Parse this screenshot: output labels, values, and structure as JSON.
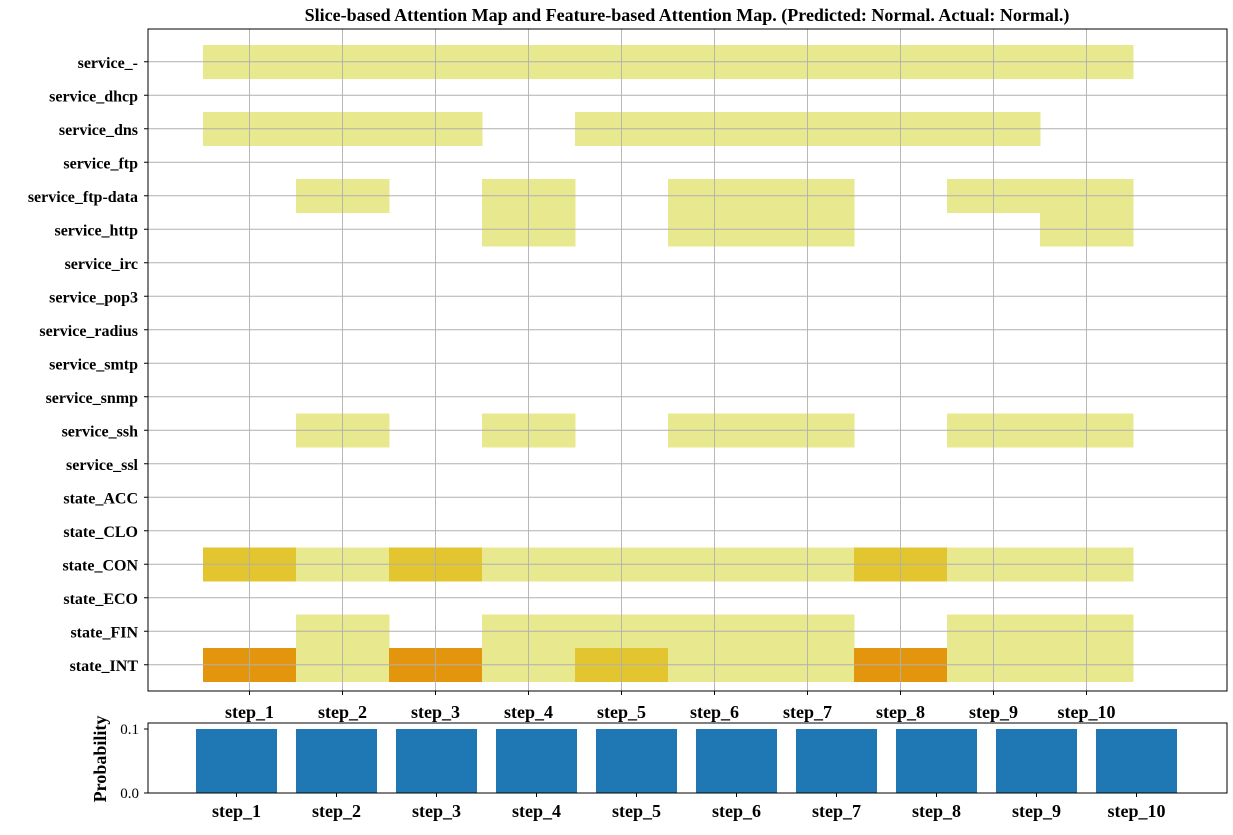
{
  "chart_data": [
    {
      "type": "heatmap",
      "title": "Slice-based Attention Map and Feature-based Attention Map.  (Predicted: Normal.  Actual: Normal.)",
      "x_categories": [
        "step_1",
        "step_2",
        "step_3",
        "step_4",
        "step_5",
        "step_6",
        "step_7",
        "step_8",
        "step_9",
        "step_10"
      ],
      "y_categories": [
        "service_-",
        "service_dhcp",
        "service_dns",
        "service_ftp",
        "service_ftp-data",
        "service_http",
        "service_irc",
        "service_pop3",
        "service_radius",
        "service_smtp",
        "service_snmp",
        "service_ssh",
        "service_ssl",
        "state_ACC",
        "state_CLO",
        "state_CON",
        "state_ECO",
        "state_FIN",
        "state_INT"
      ],
      "levels": [
        0,
        1,
        2,
        3
      ],
      "level_colors": [
        "#ffffff",
        "#e8e88e",
        "#e3c52f",
        "#e3960d"
      ],
      "values": [
        [
          1,
          1,
          1,
          1,
          1,
          1,
          1,
          1,
          1,
          1
        ],
        [
          0,
          0,
          0,
          0,
          0,
          0,
          0,
          0,
          0,
          0
        ],
        [
          1,
          1,
          1,
          0,
          1,
          1,
          1,
          1,
          1,
          0
        ],
        [
          0,
          0,
          0,
          0,
          0,
          0,
          0,
          0,
          0,
          0
        ],
        [
          0,
          1,
          0,
          1,
          0,
          1,
          1,
          0,
          1,
          1
        ],
        [
          0,
          0,
          0,
          1,
          0,
          1,
          1,
          0,
          0,
          1
        ],
        [
          0,
          0,
          0,
          0,
          0,
          0,
          0,
          0,
          0,
          0
        ],
        [
          0,
          0,
          0,
          0,
          0,
          0,
          0,
          0,
          0,
          0
        ],
        [
          0,
          0,
          0,
          0,
          0,
          0,
          0,
          0,
          0,
          0
        ],
        [
          0,
          0,
          0,
          0,
          0,
          0,
          0,
          0,
          0,
          0
        ],
        [
          0,
          0,
          0,
          0,
          0,
          0,
          0,
          0,
          0,
          0
        ],
        [
          0,
          1,
          0,
          1,
          0,
          1,
          1,
          0,
          1,
          1
        ],
        [
          0,
          0,
          0,
          0,
          0,
          0,
          0,
          0,
          0,
          0
        ],
        [
          0,
          0,
          0,
          0,
          0,
          0,
          0,
          0,
          0,
          0
        ],
        [
          0,
          0,
          0,
          0,
          0,
          0,
          0,
          0,
          0,
          0
        ],
        [
          2,
          1,
          2,
          1,
          1,
          1,
          1,
          2,
          1,
          1
        ],
        [
          0,
          0,
          0,
          0,
          0,
          0,
          0,
          0,
          0,
          0
        ],
        [
          0,
          1,
          0,
          1,
          1,
          1,
          1,
          0,
          1,
          1
        ],
        [
          3,
          1,
          3,
          1,
          2,
          1,
          1,
          3,
          1,
          1
        ]
      ],
      "grid": true
    },
    {
      "type": "bar",
      "categories": [
        "step_1",
        "step_2",
        "step_3",
        "step_4",
        "step_5",
        "step_6",
        "step_7",
        "step_8",
        "step_9",
        "step_10"
      ],
      "values": [
        0.1,
        0.1,
        0.1,
        0.1,
        0.1,
        0.1,
        0.1,
        0.1,
        0.1,
        0.1
      ],
      "ylabel": "Probability",
      "yticks": [
        "0.0",
        "0.1"
      ],
      "ylim": [
        0,
        0.1
      ],
      "color": "#1f77b4",
      "grid": false
    }
  ]
}
